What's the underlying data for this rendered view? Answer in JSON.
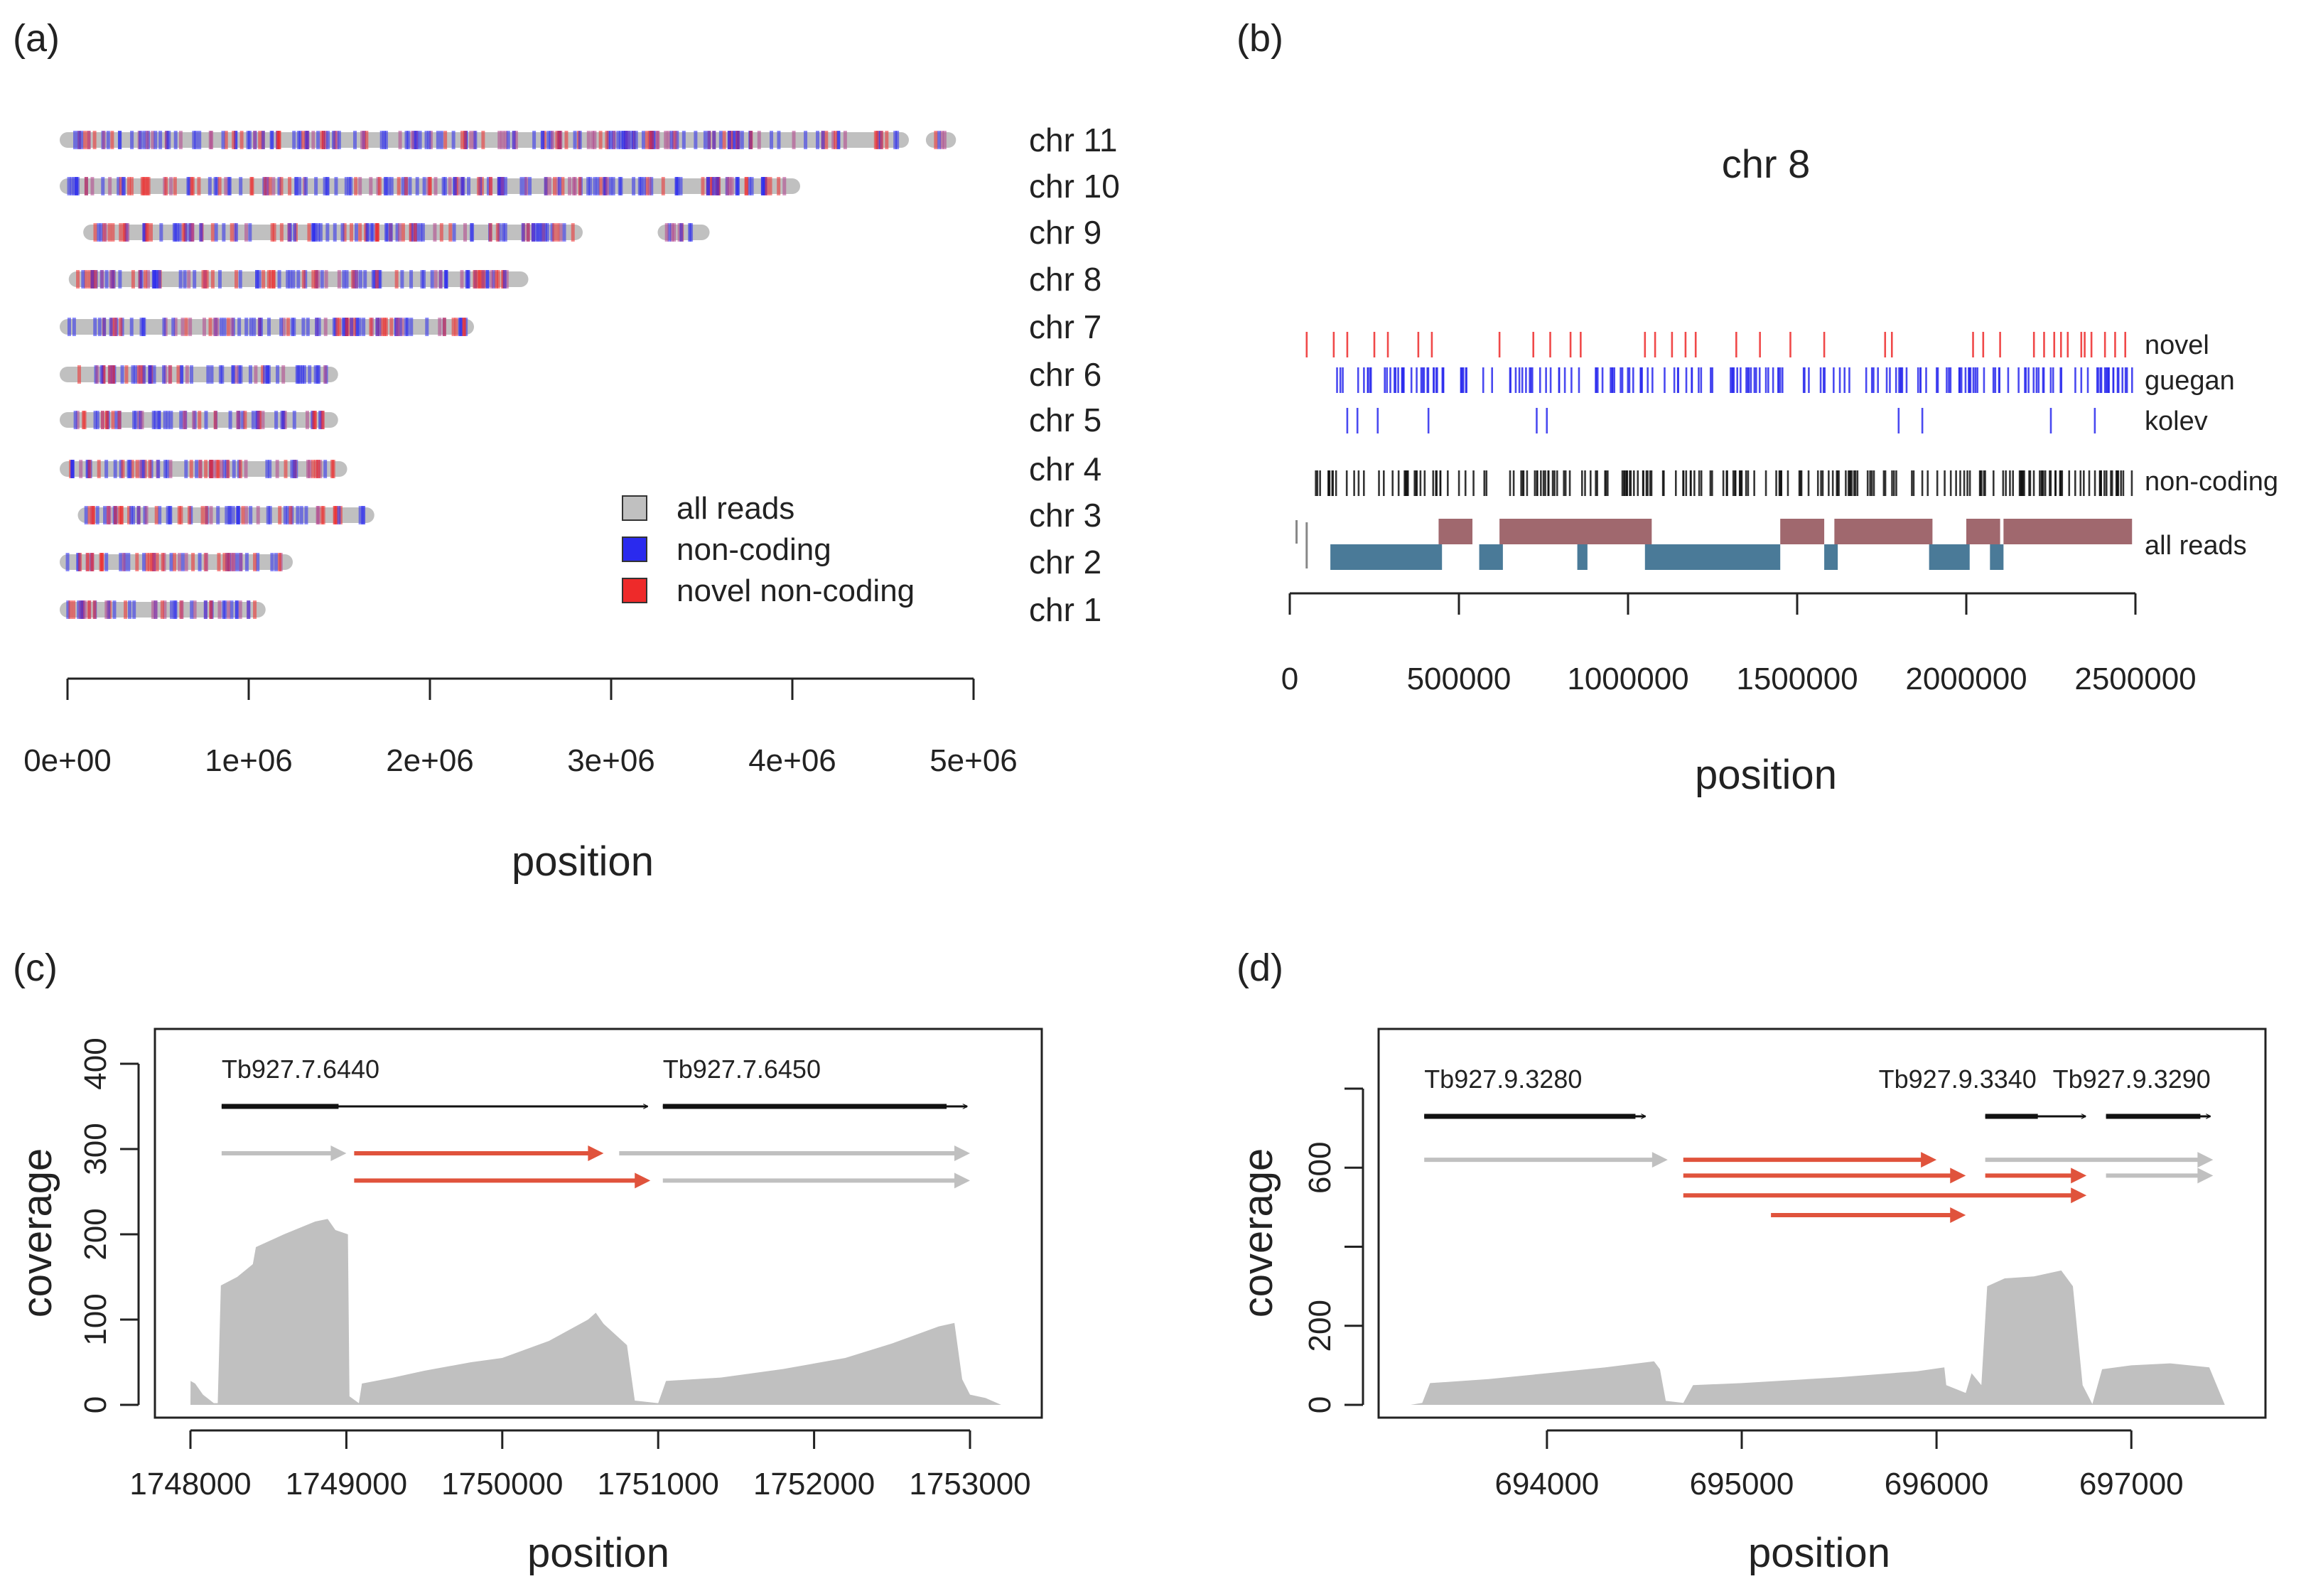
{
  "colors": {
    "grey": "#c0c0c0",
    "blue": "#2a2aee",
    "red": "#ee2a2a",
    "salmon": "#e0533c",
    "mauve": "#a0686e",
    "steel": "#4a7a98",
    "black": "#111111"
  },
  "chart_data": [
    {
      "panel": "(a)",
      "type": "scatter",
      "title": "",
      "xlabel": "position",
      "xlim": [
        0,
        5000000
      ],
      "x_ticks": [
        0,
        1000000,
        2000000,
        3000000,
        4000000,
        5000000
      ],
      "x_tick_labels": [
        "0e+00",
        "1e+06",
        "2e+06",
        "3e+06",
        "4e+06",
        "5e+06"
      ],
      "legend": {
        "position": "bottom-right",
        "entries": [
          {
            "label": "all reads",
            "color": "#c0c0c0"
          },
          {
            "label": "non-coding",
            "color": "#2a2aee"
          },
          {
            "label": "novel non-coding",
            "color": "#ee2a2a"
          }
        ]
      },
      "chromosomes": [
        {
          "label": "chr 11",
          "segments": [
            [
              0,
              4600000
            ],
            [
              4780000,
              4860000
            ]
          ]
        },
        {
          "label": "chr 10",
          "segments": [
            [
              0,
              4000000
            ]
          ]
        },
        {
          "label": "chr 9",
          "segments": [
            [
              130000,
              2800000
            ],
            [
              3300000,
              3500000
            ]
          ]
        },
        {
          "label": "chr 8",
          "segments": [
            [
              50000,
              2500000
            ]
          ]
        },
        {
          "label": "chr 7",
          "segments": [
            [
              0,
              2200000
            ]
          ]
        },
        {
          "label": "chr 6",
          "segments": [
            [
              0,
              1450000
            ]
          ]
        },
        {
          "label": "chr 5",
          "segments": [
            [
              0,
              1450000
            ]
          ]
        },
        {
          "label": "chr 4",
          "segments": [
            [
              0,
              1500000
            ]
          ]
        },
        {
          "label": "chr 3",
          "segments": [
            [
              100000,
              1650000
            ]
          ]
        },
        {
          "label": "chr 2",
          "segments": [
            [
              0,
              1200000
            ]
          ]
        },
        {
          "label": "chr 1",
          "segments": [
            [
              0,
              1050000
            ]
          ]
        }
      ]
    },
    {
      "panel": "(b)",
      "type": "scatter",
      "title": "chr 8",
      "xlabel": "position",
      "xlim": [
        0,
        2500000
      ],
      "x_ticks": [
        0,
        500000,
        1000000,
        1500000,
        2000000,
        2500000
      ],
      "x_tick_labels": [
        "0",
        "500000",
        "1000000",
        "1500000",
        "2000000",
        "2500000"
      ],
      "tracks": [
        {
          "label": "novel",
          "color": "#ee2a2a",
          "positions": [
            50000,
            130000,
            170000,
            250000,
            290000,
            380000,
            420000,
            620000,
            720000,
            770000,
            830000,
            860000,
            1050000,
            1080000,
            1130000,
            1170000,
            1200000,
            1320000,
            1390000,
            1480000,
            1580000,
            1760000,
            1780000,
            2020000,
            2050000,
            2100000,
            2200000,
            2230000,
            2260000,
            2280000,
            2300000,
            2340000,
            2350000,
            2370000,
            2410000,
            2440000,
            2470000
          ]
        },
        {
          "label": "guegan",
          "color": "#2a2aee",
          "positions": []
        },
        {
          "label": "kolev",
          "color": "#2a2aee",
          "positions": [
            170000,
            200000,
            260000,
            410000,
            730000,
            760000,
            1800000,
            1870000,
            2250000,
            2380000
          ]
        },
        {
          "label": "non-coding",
          "color": "#111111",
          "positions": []
        },
        {
          "label": "all reads",
          "segments_plus": [
            [
              440000,
              540000
            ],
            [
              620000,
              1070000
            ],
            [
              1450000,
              1580000
            ],
            [
              1610000,
              1900000
            ],
            [
              2000000,
              2100000
            ],
            [
              2110000,
              2490000
            ]
          ],
          "segments_minus": [
            [
              120000,
              450000
            ],
            [
              560000,
              630000
            ],
            [
              850000,
              880000
            ],
            [
              1050000,
              1450000
            ],
            [
              1580000,
              1620000
            ],
            [
              1890000,
              2010000
            ],
            [
              2070000,
              2110000
            ]
          ]
        }
      ]
    },
    {
      "panel": "(c)",
      "type": "area",
      "xlabel": "position",
      "ylabel": "coverage",
      "xlim": [
        1748000,
        1753000
      ],
      "ylim": [
        0,
        400
      ],
      "x_ticks": [
        1748000,
        1749000,
        1750000,
        1751000,
        1752000,
        1753000
      ],
      "x_tick_labels": [
        "1748000",
        "1749000",
        "1750000",
        "1751000",
        "1752000",
        "1753000"
      ],
      "y_ticks": [
        0,
        100,
        200,
        300,
        400
      ],
      "y_tick_labels": [
        "0",
        "100",
        "200",
        "300",
        "400"
      ],
      "genes": [
        {
          "name": "Tb927.7.6440",
          "start": 1748200,
          "end": 1750950,
          "cds_start": 1748200,
          "cds_end": 1748950,
          "y": 350
        },
        {
          "name": "Tb927.7.6450",
          "start": 1751030,
          "end": 1753000,
          "cds_start": 1751030,
          "cds_end": 1752850,
          "y": 350
        }
      ],
      "transcripts": [
        {
          "start": 1748200,
          "end": 1749000,
          "color": "#c0c0c0",
          "y": 295
        },
        {
          "start": 1749050,
          "end": 1750650,
          "color": "#e0533c",
          "y": 295
        },
        {
          "start": 1749050,
          "end": 1750950,
          "color": "#e0533c",
          "y": 263
        },
        {
          "start": 1750750,
          "end": 1753000,
          "color": "#c0c0c0",
          "y": 295
        },
        {
          "start": 1751030,
          "end": 1753000,
          "color": "#c0c0c0",
          "y": 263
        }
      ],
      "coverage": [
        [
          1748000,
          0
        ],
        [
          1748001,
          28
        ],
        [
          1748030,
          25
        ],
        [
          1748080,
          12
        ],
        [
          1748150,
          2
        ],
        [
          1748175,
          2
        ],
        [
          1748195,
          140
        ],
        [
          1748300,
          150
        ],
        [
          1748400,
          165
        ],
        [
          1748420,
          185
        ],
        [
          1748600,
          200
        ],
        [
          1748800,
          215
        ],
        [
          1748880,
          218
        ],
        [
          1748930,
          205
        ],
        [
          1749010,
          200
        ],
        [
          1749020,
          10
        ],
        [
          1749080,
          2
        ],
        [
          1749100,
          25
        ],
        [
          1749300,
          32
        ],
        [
          1749500,
          40
        ],
        [
          1749800,
          50
        ],
        [
          1750000,
          55
        ],
        [
          1750300,
          75
        ],
        [
          1750550,
          100
        ],
        [
          1750600,
          108
        ],
        [
          1750650,
          95
        ],
        [
          1750800,
          70
        ],
        [
          1750850,
          5
        ],
        [
          1751000,
          2
        ],
        [
          1751050,
          28
        ],
        [
          1751400,
          32
        ],
        [
          1751800,
          42
        ],
        [
          1752200,
          55
        ],
        [
          1752500,
          72
        ],
        [
          1752800,
          92
        ],
        [
          1752900,
          96
        ],
        [
          1752950,
          30
        ],
        [
          1753000,
          12
        ],
        [
          1753100,
          8
        ],
        [
          1753200,
          0
        ]
      ]
    },
    {
      "panel": "(d)",
      "type": "area",
      "xlabel": "position",
      "ylabel": "coverage",
      "xlim": [
        693300,
        697550
      ],
      "ylim": [
        0,
        800
      ],
      "x_ticks": [
        694000,
        695000,
        696000,
        697000
      ],
      "x_tick_labels": [
        "694000",
        "695000",
        "696000",
        "697000"
      ],
      "y_ticks": [
        0,
        200,
        400,
        600,
        800
      ],
      "y_tick_labels": [
        "0",
        "200",
        "",
        "600",
        ""
      ],
      "genes": [
        {
          "name": "Tb927.9.3280",
          "start": 693370,
          "end": 694520,
          "cds_start": 693370,
          "cds_end": 694520,
          "y": 730
        },
        {
          "name": "Tb927.9.3340",
          "start": 696250,
          "end": 696780,
          "cds_start": 696250,
          "cds_end": 696520,
          "y": 730
        },
        {
          "name": "Tb927.9.3290",
          "start": 696870,
          "end": 697420,
          "cds_start": 696870,
          "cds_end": 697420,
          "y": 730
        }
      ],
      "transcripts": [
        {
          "start": 693370,
          "end": 694620,
          "color": "#c0c0c0",
          "y": 620
        },
        {
          "start": 694700,
          "end": 696000,
          "color": "#e0533c",
          "y": 620
        },
        {
          "start": 694700,
          "end": 696150,
          "color": "#e0533c",
          "y": 580
        },
        {
          "start": 694700,
          "end": 696770,
          "color": "#e0533c",
          "y": 530
        },
        {
          "start": 695150,
          "end": 696150,
          "color": "#e0533c",
          "y": 480
        },
        {
          "start": 696250,
          "end": 697420,
          "color": "#c0c0c0",
          "y": 620
        },
        {
          "start": 696250,
          "end": 696770,
          "color": "#e0533c",
          "y": 580
        },
        {
          "start": 696870,
          "end": 697420,
          "color": "#c0c0c0",
          "y": 580
        }
      ],
      "coverage": [
        [
          693300,
          0
        ],
        [
          693360,
          5
        ],
        [
          693400,
          55
        ],
        [
          693700,
          65
        ],
        [
          694000,
          80
        ],
        [
          694300,
          95
        ],
        [
          694550,
          110
        ],
        [
          694580,
          90
        ],
        [
          694610,
          10
        ],
        [
          694700,
          5
        ],
        [
          694750,
          50
        ],
        [
          695000,
          55
        ],
        [
          695500,
          70
        ],
        [
          695900,
          85
        ],
        [
          696040,
          95
        ],
        [
          696050,
          50
        ],
        [
          696100,
          40
        ],
        [
          696150,
          30
        ],
        [
          696180,
          80
        ],
        [
          696230,
          50
        ],
        [
          696260,
          300
        ],
        [
          696350,
          320
        ],
        [
          696500,
          325
        ],
        [
          696640,
          340
        ],
        [
          696700,
          300
        ],
        [
          696750,
          50
        ],
        [
          696800,
          2
        ],
        [
          696850,
          90
        ],
        [
          697000,
          100
        ],
        [
          697200,
          105
        ],
        [
          697400,
          95
        ],
        [
          697480,
          0
        ]
      ]
    }
  ]
}
